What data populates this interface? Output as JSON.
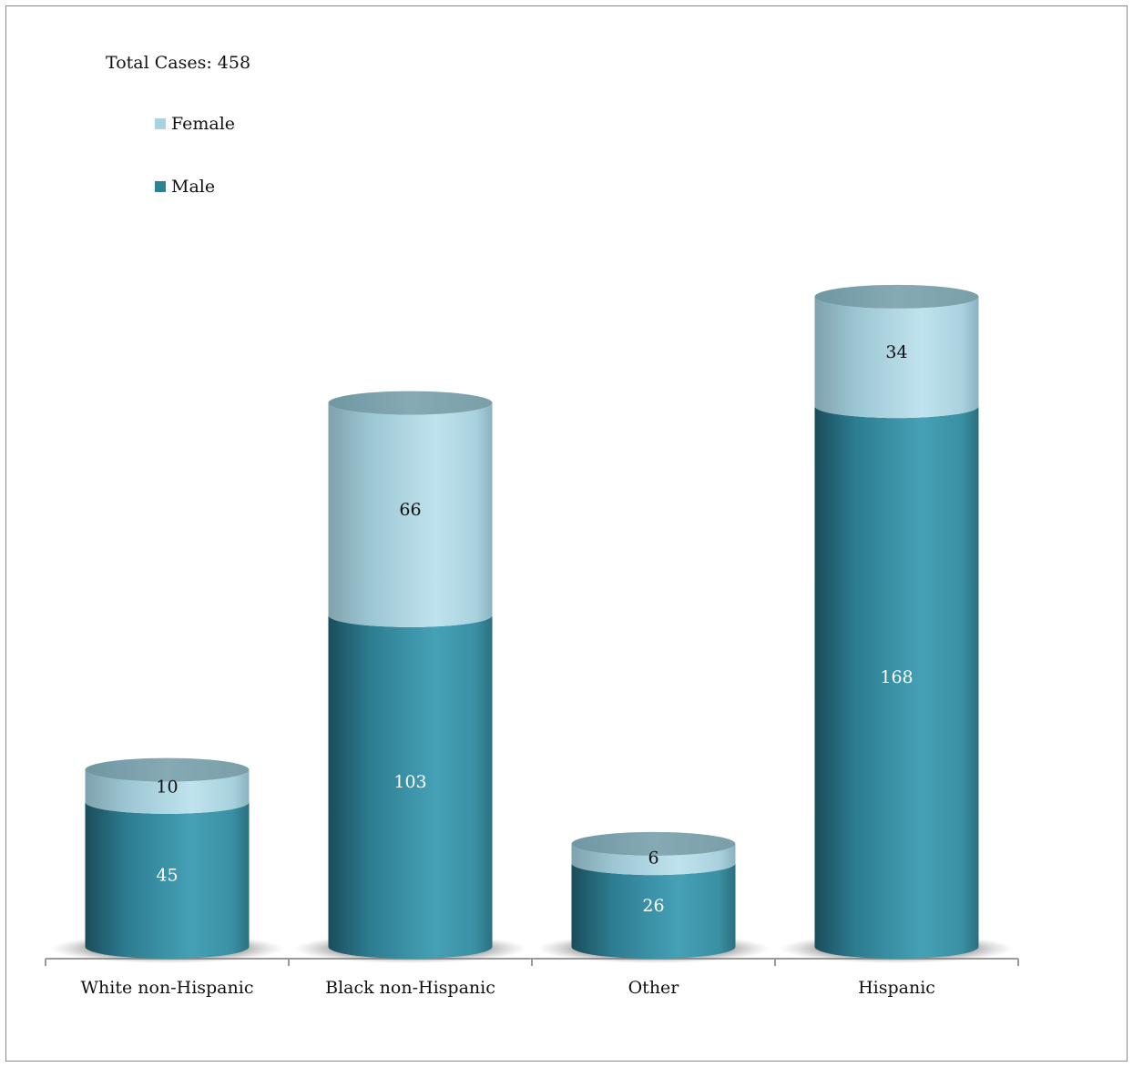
{
  "header": {
    "total_cases": "Total Cases: 458"
  },
  "legend": [
    {
      "label": "Female",
      "color": "#a9d3e2"
    },
    {
      "label": "Male",
      "color": "#2d8395"
    }
  ],
  "chart_data": {
    "type": "bar",
    "stacked": true,
    "style": "3d-cylinder",
    "categories": [
      "White non-Hispanic",
      "Black non-Hispanic",
      "Other",
      "Hispanic"
    ],
    "series": [
      {
        "name": "Male",
        "values": [
          45,
          103,
          26,
          168
        ],
        "color": "#2d8395"
      },
      {
        "name": "Female",
        "values": [
          10,
          66,
          6,
          34
        ],
        "color": "#a9d3e2"
      }
    ],
    "title": "",
    "xlabel": "",
    "ylabel": "",
    "ylim": [
      0,
      215
    ],
    "grid": false,
    "legend_position": "top-left"
  }
}
